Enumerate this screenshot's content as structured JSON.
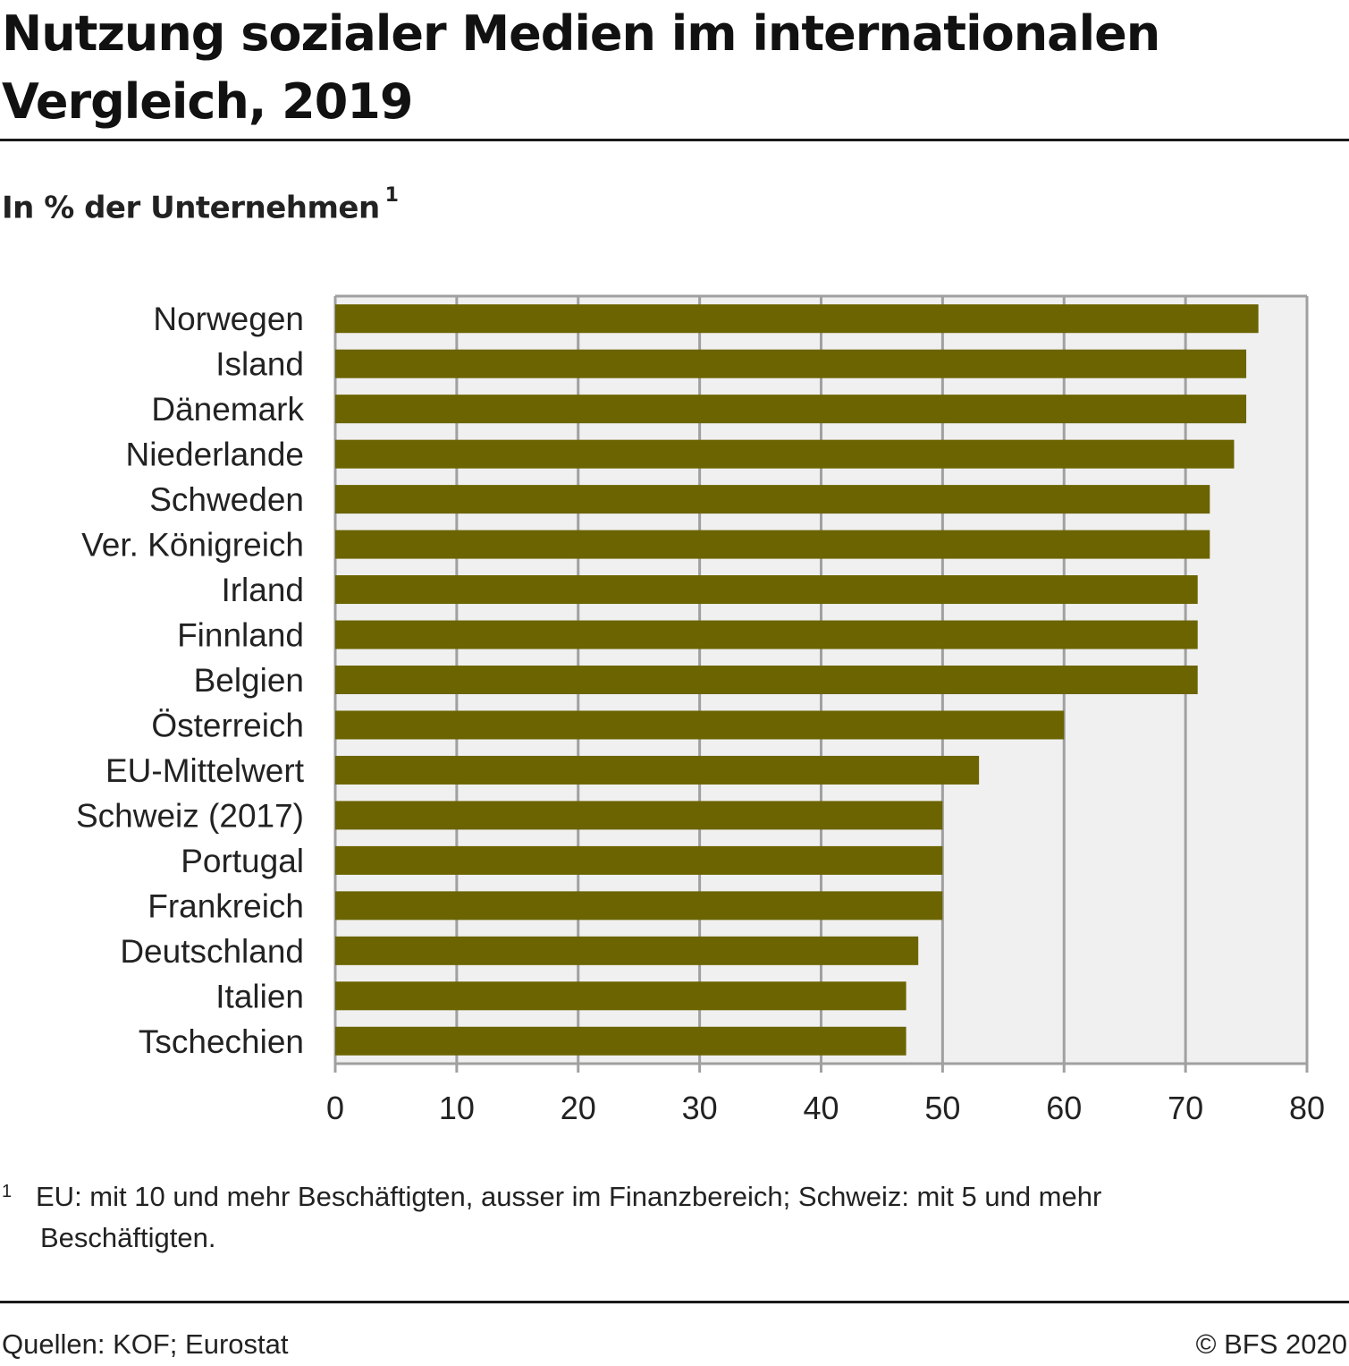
{
  "title_line1": "Nutzung sozialer Medien im internationalen",
  "title_line2": "Vergleich, 2019",
  "subtitle": "In % der Unternehmen",
  "subtitle_note": "1",
  "footnote": {
    "marker": "1",
    "line1": "EU: mit 10 und mehr Beschäftigten, ausser im Finanzbereich; Schweiz: mit 5 und mehr",
    "line2": "Beschäftigten."
  },
  "source": "Quellen: KOF; Eurostat",
  "copyright": "© BFS 2020",
  "colors": {
    "bar": "#6b6400",
    "plot_bg": "#f0f0f0",
    "grid": "#a0a0a0"
  },
  "chart_data": {
    "type": "bar",
    "orientation": "horizontal",
    "title": "Nutzung sozialer Medien im internationalen Vergleich, 2019",
    "xlabel": "",
    "ylabel": "In % der Unternehmen",
    "xlim": [
      0,
      80
    ],
    "xticks": [
      0,
      10,
      20,
      30,
      40,
      50,
      60,
      70,
      80
    ],
    "grid": true,
    "legend": "none",
    "categories": [
      "Norwegen",
      "Island",
      "Dänemark",
      "Niederlande",
      "Schweden",
      "Ver. Königreich",
      "Irland",
      "Finnland",
      "Belgien",
      "Österreich",
      "EU-Mittelwert",
      "Schweiz (2017)",
      "Portugal",
      "Frankreich",
      "Deutschland",
      "Italien",
      "Tschechien"
    ],
    "values": [
      76,
      75,
      75,
      74,
      72,
      72,
      71,
      71,
      71,
      60,
      53,
      50,
      50,
      50,
      48,
      47,
      47
    ]
  }
}
